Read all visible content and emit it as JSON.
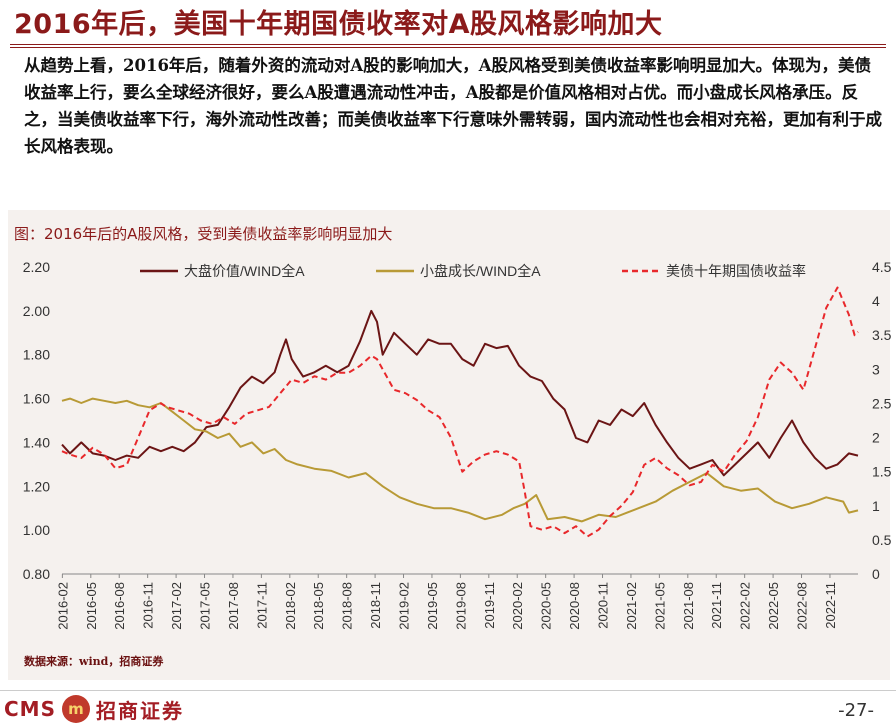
{
  "title": "2016年后，美国十年期国债收率对A股风格影响加大",
  "body_text": "从趋势上看，2016年后，随着外资的流动对A股的影响加大，A股风格受到美债收益率影响明显加大。体现为，美债收益率上行，要么全球经济很好，要么A股遭遇流动性冲击，A股都是价值风格相对占优。而小盘成长风格承压。反之，当美债收益率下行，海外流动性改善；而美债收益率下行意味外需转弱，国内流动性也会相对充裕，更加有利于成长风格表现。",
  "chart_caption": "图：2016年后的A股风格，受到美债收益率影响明显加大",
  "source": "数据来源：wind，招商证券",
  "logo": {
    "cms": "CMS",
    "badge": "m",
    "name": "招商证券"
  },
  "page_number": "-27-",
  "chart_data": {
    "type": "line",
    "title": "",
    "xlabel": "",
    "ylabel": "",
    "ylim": [
      0.8,
      2.2
    ],
    "y_ticks": [
      "0.80",
      "1.00",
      "1.20",
      "1.40",
      "1.60",
      "1.80",
      "2.00",
      "2.20"
    ],
    "y2lim": [
      0,
      4.5
    ],
    "y2_ticks": [
      "0",
      "0.5",
      "1",
      "1.5",
      "2",
      "2.5",
      "3",
      "3.5",
      "4",
      "4.5"
    ],
    "x_tick_labels": [
      "2016-02",
      "2016-05",
      "2016-08",
      "2016-11",
      "2017-02",
      "2017-05",
      "2017-08",
      "2017-11",
      "2018-02",
      "2018-05",
      "2018-08",
      "2018-11",
      "2019-02",
      "2019-05",
      "2019-08",
      "2019-11",
      "2020-02",
      "2020-05",
      "2020-08",
      "2020-11",
      "2021-02",
      "2021-05",
      "2021-08",
      "2021-11",
      "2022-02",
      "2022-05",
      "2022-08",
      "2022-11"
    ],
    "x_range": [
      2016.08,
      2023.08
    ],
    "legend_position": "top",
    "grid": false,
    "colors": {
      "value": "#6b1515",
      "growth": "#b89a36",
      "yield": "#e8282b"
    },
    "series": [
      {
        "name": "大盘价值/WIND全A",
        "axis": "left",
        "style": "solid",
        "x": [
          2016.08,
          2016.15,
          2016.25,
          2016.35,
          2016.45,
          2016.55,
          2016.65,
          2016.75,
          2016.85,
          2016.95,
          2017.05,
          2017.15,
          2017.25,
          2017.35,
          2017.45,
          2017.55,
          2017.65,
          2017.75,
          2017.85,
          2017.95,
          2018.0,
          2018.05,
          2018.1,
          2018.15,
          2018.2,
          2018.3,
          2018.4,
          2018.5,
          2018.6,
          2018.7,
          2018.8,
          2018.85,
          2018.9,
          2019.0,
          2019.1,
          2019.2,
          2019.3,
          2019.4,
          2019.5,
          2019.6,
          2019.7,
          2019.8,
          2019.9,
          2020.0,
          2020.1,
          2020.2,
          2020.3,
          2020.4,
          2020.5,
          2020.6,
          2020.7,
          2020.8,
          2020.9,
          2021.0,
          2021.1,
          2021.2,
          2021.3,
          2021.4,
          2021.5,
          2021.6,
          2021.7,
          2021.8,
          2021.9,
          2022.0,
          2022.1,
          2022.2,
          2022.3,
          2022.4,
          2022.5,
          2022.6,
          2022.7,
          2022.8,
          2022.9,
          2023.0,
          2023.08
        ],
        "y": [
          1.39,
          1.35,
          1.4,
          1.35,
          1.34,
          1.32,
          1.34,
          1.33,
          1.38,
          1.36,
          1.38,
          1.36,
          1.4,
          1.47,
          1.48,
          1.56,
          1.65,
          1.7,
          1.67,
          1.72,
          1.8,
          1.87,
          1.78,
          1.74,
          1.7,
          1.72,
          1.75,
          1.72,
          1.75,
          1.86,
          2.0,
          1.95,
          1.8,
          1.9,
          1.85,
          1.8,
          1.87,
          1.85,
          1.85,
          1.78,
          1.75,
          1.85,
          1.83,
          1.84,
          1.75,
          1.7,
          1.68,
          1.6,
          1.55,
          1.42,
          1.4,
          1.5,
          1.48,
          1.55,
          1.52,
          1.58,
          1.48,
          1.4,
          1.33,
          1.28,
          1.3,
          1.32,
          1.25,
          1.3,
          1.35,
          1.4,
          1.33,
          1.42,
          1.5,
          1.4,
          1.33,
          1.28,
          1.3,
          1.35,
          1.34
        ]
      },
      {
        "name": "小盘成长/WIND全A",
        "axis": "left",
        "style": "solid",
        "x": [
          2016.08,
          2016.15,
          2016.25,
          2016.35,
          2016.45,
          2016.55,
          2016.65,
          2016.75,
          2016.85,
          2016.95,
          2017.05,
          2017.15,
          2017.25,
          2017.35,
          2017.45,
          2017.55,
          2017.65,
          2017.75,
          2017.85,
          2017.95,
          2018.05,
          2018.15,
          2018.3,
          2018.45,
          2018.6,
          2018.75,
          2018.9,
          2019.05,
          2019.2,
          2019.35,
          2019.5,
          2019.65,
          2019.8,
          2019.95,
          2020.05,
          2020.15,
          2020.25,
          2020.35,
          2020.5,
          2020.65,
          2020.8,
          2020.95,
          2021.05,
          2021.15,
          2021.3,
          2021.45,
          2021.6,
          2021.75,
          2021.9,
          2022.05,
          2022.2,
          2022.35,
          2022.5,
          2022.65,
          2022.8,
          2022.95,
          2023.0,
          2023.08
        ],
        "y": [
          1.59,
          1.6,
          1.58,
          1.6,
          1.59,
          1.58,
          1.59,
          1.57,
          1.56,
          1.58,
          1.54,
          1.5,
          1.46,
          1.45,
          1.42,
          1.44,
          1.38,
          1.4,
          1.35,
          1.37,
          1.32,
          1.3,
          1.28,
          1.27,
          1.24,
          1.26,
          1.2,
          1.15,
          1.12,
          1.1,
          1.1,
          1.08,
          1.05,
          1.07,
          1.1,
          1.12,
          1.16,
          1.05,
          1.06,
          1.04,
          1.07,
          1.06,
          1.08,
          1.1,
          1.13,
          1.18,
          1.22,
          1.26,
          1.2,
          1.18,
          1.19,
          1.13,
          1.1,
          1.12,
          1.15,
          1.13,
          1.08,
          1.09
        ]
      },
      {
        "name": "美债十年期国债收益率",
        "axis": "right",
        "style": "dashed",
        "x": [
          2016.08,
          2016.15,
          2016.25,
          2016.35,
          2016.45,
          2016.55,
          2016.65,
          2016.75,
          2016.85,
          2016.95,
          2017.0,
          2017.1,
          2017.2,
          2017.3,
          2017.4,
          2017.5,
          2017.6,
          2017.7,
          2017.8,
          2017.9,
          2018.0,
          2018.1,
          2018.2,
          2018.3,
          2018.4,
          2018.5,
          2018.6,
          2018.7,
          2018.8,
          2018.85,
          2018.9,
          2019.0,
          2019.1,
          2019.2,
          2019.3,
          2019.4,
          2019.5,
          2019.6,
          2019.7,
          2019.8,
          2019.9,
          2020.0,
          2020.1,
          2020.15,
          2020.2,
          2020.3,
          2020.4,
          2020.5,
          2020.6,
          2020.7,
          2020.8,
          2020.9,
          2021.0,
          2021.1,
          2021.2,
          2021.3,
          2021.4,
          2021.5,
          2021.6,
          2021.7,
          2021.8,
          2021.9,
          2022.0,
          2022.1,
          2022.2,
          2022.3,
          2022.4,
          2022.5,
          2022.6,
          2022.7,
          2022.8,
          2022.9,
          2023.0,
          2023.05,
          2023.08
        ],
        "y": [
          1.8,
          1.75,
          1.7,
          1.85,
          1.75,
          1.55,
          1.6,
          2.0,
          2.4,
          2.5,
          2.45,
          2.4,
          2.35,
          2.25,
          2.2,
          2.3,
          2.2,
          2.35,
          2.4,
          2.45,
          2.65,
          2.85,
          2.8,
          2.9,
          2.85,
          2.95,
          2.95,
          3.05,
          3.2,
          3.15,
          3.0,
          2.7,
          2.65,
          2.55,
          2.4,
          2.3,
          2.0,
          1.5,
          1.65,
          1.75,
          1.8,
          1.75,
          1.65,
          1.2,
          0.7,
          0.65,
          0.7,
          0.6,
          0.7,
          0.55,
          0.65,
          0.85,
          1.0,
          1.2,
          1.6,
          1.7,
          1.55,
          1.45,
          1.3,
          1.35,
          1.6,
          1.5,
          1.75,
          1.95,
          2.3,
          2.85,
          3.1,
          2.95,
          2.7,
          3.3,
          3.9,
          4.2,
          3.8,
          3.5,
          3.55
        ]
      }
    ]
  }
}
